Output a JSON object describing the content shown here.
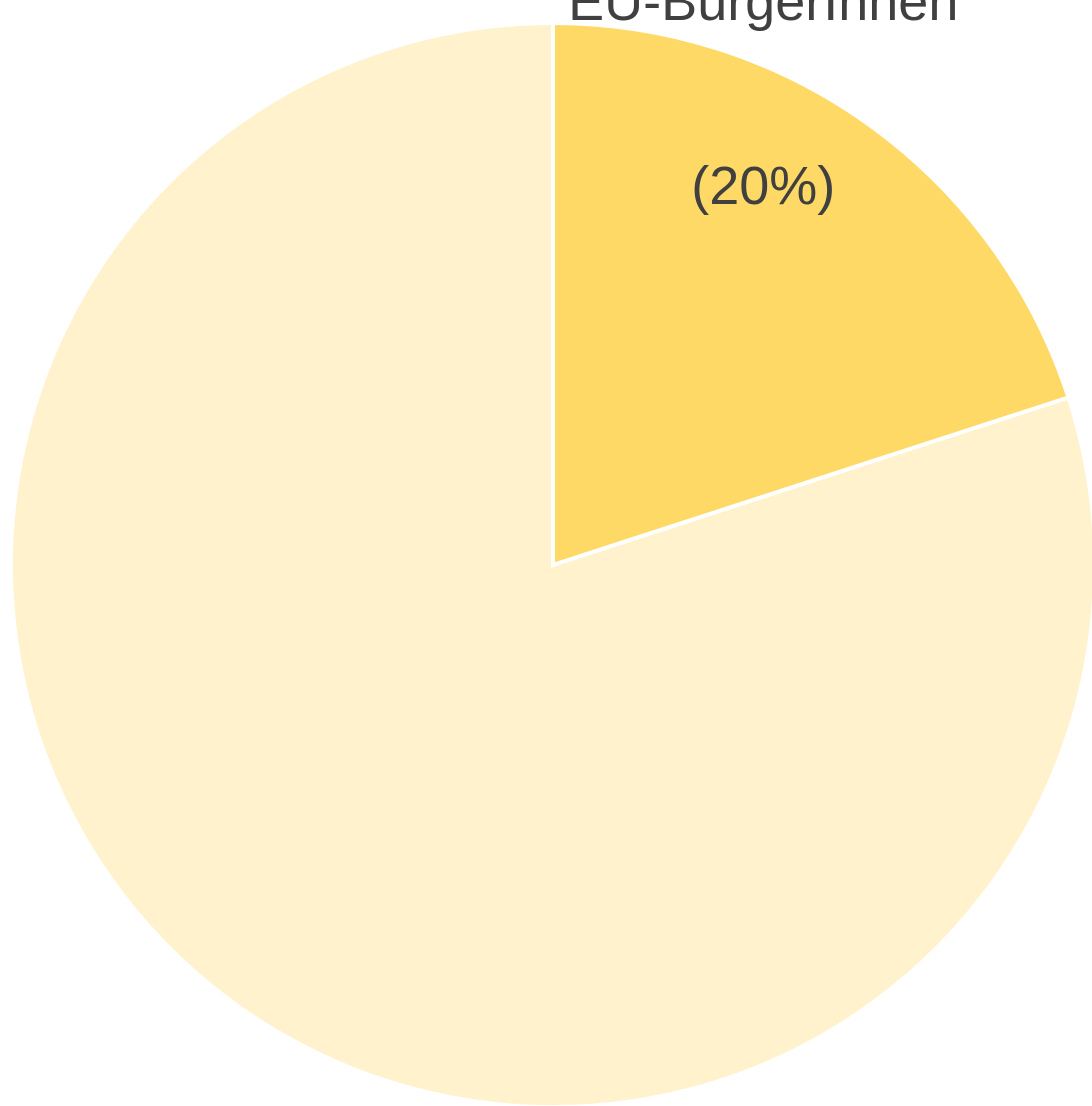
{
  "chart_data": {
    "type": "pie",
    "categories": [
      "EU-BürgerInnen",
      null
    ],
    "values": [
      20,
      80
    ],
    "value_labels": [
      "(20%)",
      null
    ],
    "colors": [
      "#ffd966",
      "#fff2cc"
    ]
  }
}
